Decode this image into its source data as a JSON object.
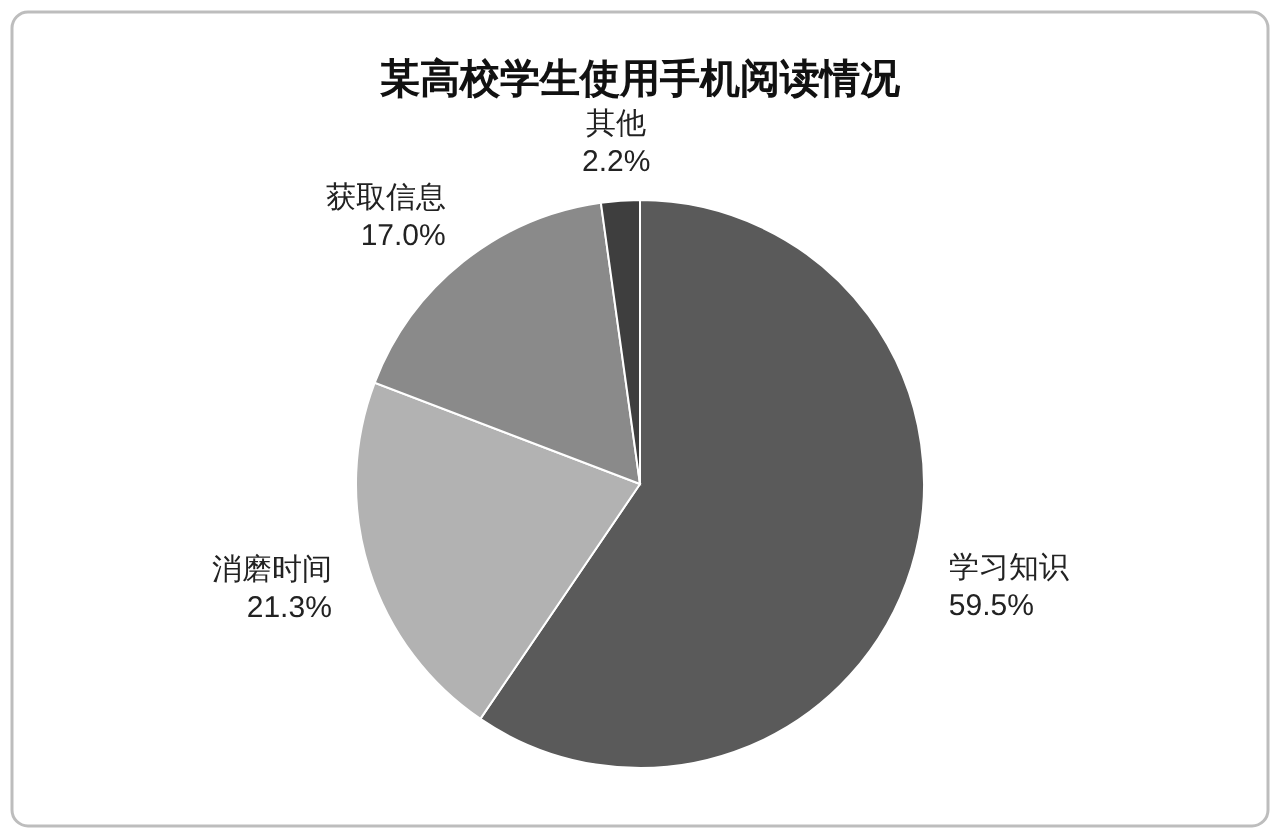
{
  "chart_data": {
    "type": "pie",
    "title": "某高校学生使用手机阅读情况",
    "categories": [
      "学习知识",
      "消磨时间",
      "获取信息",
      "其他"
    ],
    "values": [
      59.5,
      21.3,
      17.0,
      2.2
    ],
    "value_labels": [
      "59.5%",
      "21.3%",
      "17.0%",
      "2.2%"
    ],
    "colors": [
      "#5a5a5a",
      "#b2b2b2",
      "#8a8a8a",
      "#3e3e3e"
    ]
  }
}
